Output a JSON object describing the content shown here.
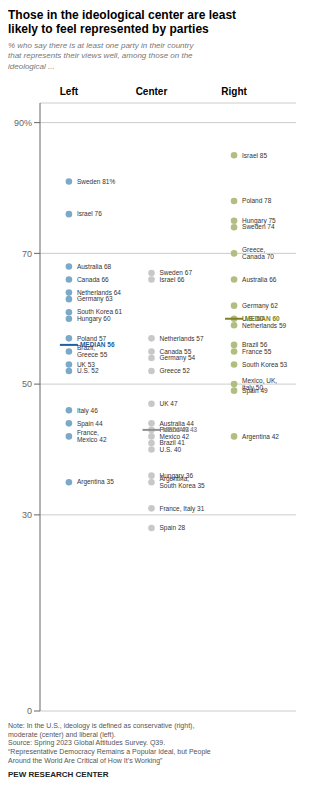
{
  "chart_data": {
    "type": "dot",
    "title": "Those in the ideological center are least\nlikely to feel represented by parties",
    "subtitle": "% who say there is at least one party in their country\nthat represents their views well, among those on the\nideological ...",
    "categories": [
      "Left",
      "Center",
      "Right"
    ],
    "ylim": [
      0,
      93
    ],
    "yticks": [
      0,
      30,
      50,
      70,
      {
        "value": 90,
        "label": "90%"
      }
    ],
    "grid": true,
    "groups": [
      {
        "category": "Left",
        "color": "#7baac8",
        "median_color": "#2060a0",
        "points": [
          {
            "label": "Sweden",
            "value": 81,
            "value_label": "81%",
            "is_median": false
          },
          {
            "label": "Israel",
            "value": 76,
            "value_label": "76",
            "is_median": false
          },
          {
            "label": "Australia",
            "value": 68,
            "value_label": "68",
            "is_median": false
          },
          {
            "label": "Canada",
            "value": 66,
            "value_label": "66",
            "is_median": false
          },
          {
            "label": "Netherlands",
            "value": 64,
            "value_label": "64",
            "is_median": false
          },
          {
            "label": "Germany",
            "value": 63,
            "value_label": "63",
            "is_median": false
          },
          {
            "label": "South Korea",
            "value": 61,
            "value_label": "61",
            "is_median": false
          },
          {
            "label": "Hungary",
            "value": 60,
            "value_label": "60",
            "is_median": false
          },
          {
            "label": "Poland",
            "value": 57,
            "value_label": "57",
            "is_median": false
          },
          {
            "label": "MEDIAN",
            "value": 56,
            "value_label": "56",
            "is_median": true
          },
          {
            "label": "Brazil,\nGreece",
            "value": 55,
            "value_label": "55",
            "is_median": false
          },
          {
            "label": "UK",
            "value": 53,
            "value_label": "53",
            "is_median": false
          },
          {
            "label": "U.S.",
            "value": 52,
            "value_label": "52",
            "is_median": false
          },
          {
            "label": "Italy",
            "value": 46,
            "value_label": "46",
            "is_median": false
          },
          {
            "label": "Spain",
            "value": 44,
            "value_label": "44",
            "is_median": false
          },
          {
            "label": "France,\nMexico",
            "value": 42,
            "value_label": "42",
            "is_median": false
          },
          {
            "label": "Argentina",
            "value": 35,
            "value_label": "35",
            "is_median": false
          }
        ]
      },
      {
        "category": "Center",
        "color": "#c8c8c8",
        "median_color": "#909090",
        "points": [
          {
            "label": "Sweden",
            "value": 67,
            "value_label": "67",
            "is_median": false
          },
          {
            "label": "Israel",
            "value": 66,
            "value_label": "66",
            "is_median": false
          },
          {
            "label": "Netherlands",
            "value": 57,
            "value_label": "57",
            "is_median": false
          },
          {
            "label": "Canada",
            "value": 55,
            "value_label": "55",
            "is_median": false
          },
          {
            "label": "Germany",
            "value": 54,
            "value_label": "54",
            "is_median": false
          },
          {
            "label": "Greece",
            "value": 52,
            "value_label": "52",
            "is_median": false
          },
          {
            "label": "UK",
            "value": 47,
            "value_label": "47",
            "is_median": false
          },
          {
            "label": "Australia",
            "value": 44,
            "value_label": "44",
            "is_median": false
          },
          {
            "label": "Poland",
            "value": 43,
            "value_label": "43",
            "is_median": false
          },
          {
            "label": "MEDIAN",
            "value": 43,
            "value_label": "43",
            "is_median": true
          },
          {
            "label": "Mexico",
            "value": 42,
            "value_label": "42",
            "is_median": false
          },
          {
            "label": "Brazil",
            "value": 41,
            "value_label": "41",
            "is_median": false
          },
          {
            "label": "U.S.",
            "value": 40,
            "value_label": "40",
            "is_median": false
          },
          {
            "label": "Hungary",
            "value": 36,
            "value_label": "36",
            "is_median": false
          },
          {
            "label": "Argentina,\nSouth Korea",
            "value": 35,
            "value_label": "35",
            "is_median": false
          },
          {
            "label": "France, Italy",
            "value": 31,
            "value_label": "31",
            "is_median": false
          },
          {
            "label": "Spain",
            "value": 28,
            "value_label": "28",
            "is_median": false
          }
        ]
      },
      {
        "category": "Right",
        "color": "#b0be80",
        "median_color": "#808020",
        "points": [
          {
            "label": "Israel",
            "value": 85,
            "value_label": "85",
            "is_median": false
          },
          {
            "label": "Poland",
            "value": 78,
            "value_label": "78",
            "is_median": false
          },
          {
            "label": "Hungary",
            "value": 75,
            "value_label": "75",
            "is_median": false
          },
          {
            "label": "Sweden",
            "value": 74,
            "value_label": "74",
            "is_median": false
          },
          {
            "label": "Greece,\nCanada",
            "value": 70,
            "value_label": "70",
            "is_median": false
          },
          {
            "label": "Australia",
            "value": 66,
            "value_label": "66",
            "is_median": false
          },
          {
            "label": "Germany",
            "value": 62,
            "value_label": "62",
            "is_median": false
          },
          {
            "label": "U.S.",
            "value": 60,
            "value_label": "60",
            "is_median": false
          },
          {
            "label": "MEDIAN",
            "value": 60,
            "value_label": "60",
            "is_median": true
          },
          {
            "label": "Netherlands",
            "value": 59,
            "value_label": "59",
            "is_median": false
          },
          {
            "label": "Brazil",
            "value": 56,
            "value_label": "56",
            "is_median": false
          },
          {
            "label": "France",
            "value": 55,
            "value_label": "55",
            "is_median": false
          },
          {
            "label": "South Korea",
            "value": 53,
            "value_label": "53",
            "is_median": false
          },
          {
            "label": "Mexico, UK,\nItaly",
            "value": 50,
            "value_label": "50",
            "is_median": false
          },
          {
            "label": "Spain",
            "value": 49,
            "value_label": "49",
            "is_median": false
          },
          {
            "label": "Argentina",
            "value": 42,
            "value_label": "42",
            "is_median": false
          }
        ]
      }
    ],
    "note": "Note: In the U.S., ideology is defined as conservative (right),\nmoderate (center) and liberal (left).\nSource: Spring 2023 Global Attitudes Survey. Q39.\n“Representative Democracy Remains a Popular Ideal, but People\nAround the World Are Critical of How It’s Working”",
    "footer": "PEW RESEARCH CENTER"
  }
}
